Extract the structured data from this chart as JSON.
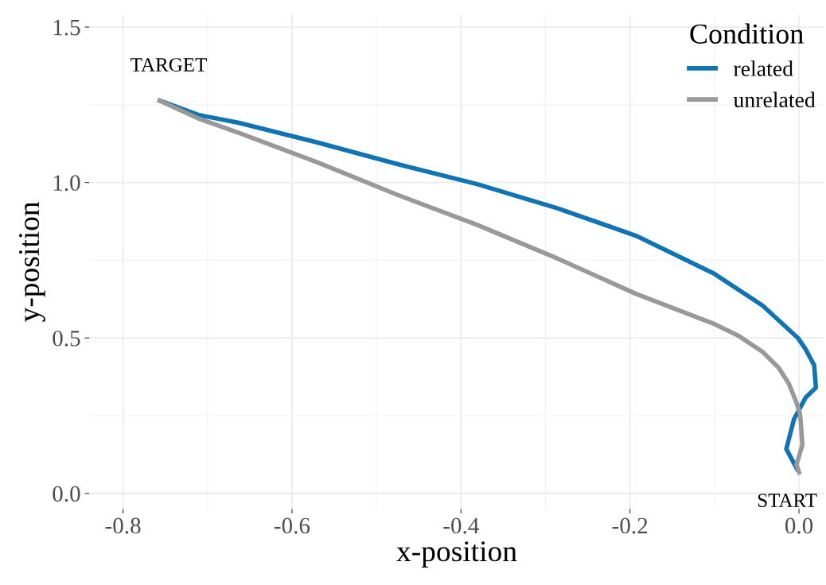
{
  "chart_data": {
    "type": "line",
    "xlabel": "x-position",
    "ylabel": "y-position",
    "legend_title": "Condition",
    "legend": "top right",
    "grid": true,
    "line_style": "solid",
    "marker": "none",
    "xlim": [
      -0.84,
      0.03
    ],
    "ylim": [
      -0.05,
      1.54
    ],
    "xticks": [
      {
        "value": -0.8,
        "label": "-0.8"
      },
      {
        "value": -0.6,
        "label": "-0.6"
      },
      {
        "value": -0.4,
        "label": "-0.4"
      },
      {
        "value": -0.2,
        "label": "-0.2"
      },
      {
        "value": 0.0,
        "label": "0.0"
      }
    ],
    "yticks": [
      {
        "value": 0.0,
        "label": "0.0"
      },
      {
        "value": 0.5,
        "label": "0.5"
      },
      {
        "value": 1.0,
        "label": "1.0"
      },
      {
        "value": 1.5,
        "label": "1.5"
      }
    ],
    "series": [
      {
        "name": "related",
        "color": "#0f73b4",
        "x": [
          -0.001,
          -0.015,
          -0.006,
          0.008,
          0.02,
          0.018,
          0.008,
          -0.001,
          -0.043,
          -0.1,
          -0.193,
          -0.287,
          -0.381,
          -0.475,
          -0.569,
          -0.663,
          -0.71,
          -0.759
        ],
        "values": [
          0.072,
          0.143,
          0.238,
          0.309,
          0.34,
          0.412,
          0.463,
          0.499,
          0.604,
          0.706,
          0.829,
          0.918,
          0.995,
          1.059,
          1.128,
          1.192,
          1.217,
          1.266
        ]
      },
      {
        "name": "unrelated",
        "color": "#999999",
        "x": [
          0.001,
          -0.003,
          0.004,
          0.002,
          0.001,
          -0.003,
          -0.012,
          -0.024,
          -0.043,
          -0.071,
          -0.102,
          -0.193,
          -0.287,
          -0.381,
          -0.475,
          -0.569,
          -0.663,
          -0.71,
          -0.759
        ],
        "values": [
          0.061,
          0.092,
          0.156,
          0.233,
          0.258,
          0.292,
          0.353,
          0.404,
          0.455,
          0.506,
          0.547,
          0.642,
          0.757,
          0.864,
          0.96,
          1.064,
          1.16,
          1.205,
          1.266
        ]
      }
    ],
    "annotations": [
      "TARGET",
      "START"
    ]
  }
}
